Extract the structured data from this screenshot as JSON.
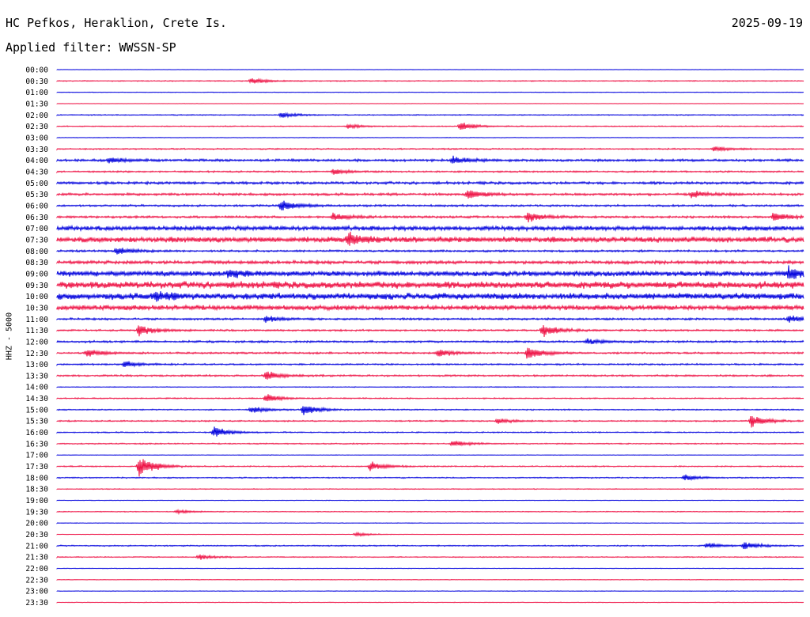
{
  "header": {
    "station": "HC Pefkos, Heraklion, Crete Is.",
    "date": "2025-09-19",
    "filter_label": "Applied filter:",
    "filter_value": "WWSSN-SP"
  },
  "chart_data": {
    "type": "line",
    "title": "HC Pefkos, Heraklion, Crete Is.",
    "date": "2025-09-19",
    "filter": "WWSSN-SP",
    "ylabel": "HHZ - 5000",
    "xlabel": "",
    "row_labels": [
      "00:00",
      "00:30",
      "01:00",
      "01:30",
      "02:00",
      "02:30",
      "03:00",
      "03:30",
      "04:00",
      "04:30",
      "05:00",
      "05:30",
      "06:00",
      "06:30",
      "07:00",
      "07:30",
      "08:00",
      "08:30",
      "09:00",
      "09:30",
      "10:00",
      "10:30",
      "11:00",
      "11:30",
      "12:00",
      "12:30",
      "13:00",
      "13:30",
      "14:00",
      "14:30",
      "15:00",
      "15:30",
      "16:00",
      "16:30",
      "17:00",
      "17:30",
      "18:00",
      "18:30",
      "19:00",
      "19:30",
      "20:00",
      "20:30",
      "21:00",
      "21:30",
      "22:00",
      "22:30",
      "23:00",
      "23:30"
    ],
    "trace_colors": [
      "#0000dd",
      "#ee1144"
    ],
    "noise_levels": [
      0.2,
      0.5,
      0.3,
      0.2,
      0.5,
      0.5,
      0.3,
      0.7,
      1.2,
      0.8,
      1.3,
      1.2,
      1.0,
      1.1,
      2.2,
      2.8,
      1.0,
      1.6,
      2.6,
      3.5,
      3.2,
      2.4,
      1.0,
      0.9,
      1.0,
      0.9,
      0.8,
      0.9,
      0.4,
      0.6,
      0.6,
      0.7,
      0.6,
      0.6,
      0.3,
      0.6,
      0.6,
      0.4,
      0.3,
      0.4,
      0.3,
      0.2,
      0.6,
      0.5,
      0.3,
      0.3,
      0.3,
      0.3
    ],
    "events": [
      {
        "row": 1,
        "pos": 0.26,
        "amp": 4
      },
      {
        "row": 4,
        "pos": 0.3,
        "amp": 4
      },
      {
        "row": 5,
        "pos": 0.39,
        "amp": 3
      },
      {
        "row": 5,
        "pos": 0.54,
        "amp": 6
      },
      {
        "row": 7,
        "pos": 0.88,
        "amp": 4
      },
      {
        "row": 8,
        "pos": 0.53,
        "amp": 5
      },
      {
        "row": 8,
        "pos": 0.07,
        "amp": 4
      },
      {
        "row": 9,
        "pos": 0.37,
        "amp": 4
      },
      {
        "row": 11,
        "pos": 0.55,
        "amp": 8
      },
      {
        "row": 11,
        "pos": 0.85,
        "amp": 5
      },
      {
        "row": 12,
        "pos": 0.3,
        "amp": 8
      },
      {
        "row": 13,
        "pos": 0.37,
        "amp": 6
      },
      {
        "row": 13,
        "pos": 0.63,
        "amp": 7
      },
      {
        "row": 13,
        "pos": 0.96,
        "amp": 6
      },
      {
        "row": 15,
        "pos": 0.39,
        "amp": 10
      },
      {
        "row": 16,
        "pos": 0.08,
        "amp": 6
      },
      {
        "row": 18,
        "pos": 0.23,
        "amp": 6
      },
      {
        "row": 18,
        "pos": 0.98,
        "amp": 8
      },
      {
        "row": 20,
        "pos": 0.13,
        "amp": 6
      },
      {
        "row": 22,
        "pos": 0.98,
        "amp": 5
      },
      {
        "row": 22,
        "pos": 0.28,
        "amp": 5
      },
      {
        "row": 23,
        "pos": 0.11,
        "amp": 8
      },
      {
        "row": 23,
        "pos": 0.65,
        "amp": 10
      },
      {
        "row": 24,
        "pos": 0.71,
        "amp": 4
      },
      {
        "row": 25,
        "pos": 0.04,
        "amp": 6
      },
      {
        "row": 25,
        "pos": 0.51,
        "amp": 5
      },
      {
        "row": 25,
        "pos": 0.63,
        "amp": 10
      },
      {
        "row": 26,
        "pos": 0.09,
        "amp": 5
      },
      {
        "row": 27,
        "pos": 0.28,
        "amp": 7
      },
      {
        "row": 29,
        "pos": 0.28,
        "amp": 6
      },
      {
        "row": 30,
        "pos": 0.26,
        "amp": 5
      },
      {
        "row": 30,
        "pos": 0.33,
        "amp": 8
      },
      {
        "row": 31,
        "pos": 0.59,
        "amp": 4
      },
      {
        "row": 31,
        "pos": 0.93,
        "amp": 9
      },
      {
        "row": 32,
        "pos": 0.21,
        "amp": 8
      },
      {
        "row": 33,
        "pos": 0.53,
        "amp": 5
      },
      {
        "row": 35,
        "pos": 0.11,
        "amp": 16
      },
      {
        "row": 35,
        "pos": 0.42,
        "amp": 7
      },
      {
        "row": 36,
        "pos": 0.84,
        "amp": 4
      },
      {
        "row": 39,
        "pos": 0.16,
        "amp": 3
      },
      {
        "row": 41,
        "pos": 0.4,
        "amp": 3
      },
      {
        "row": 42,
        "pos": 0.87,
        "amp": 4
      },
      {
        "row": 42,
        "pos": 0.92,
        "amp": 6
      },
      {
        "row": 43,
        "pos": 0.19,
        "amp": 4
      }
    ]
  }
}
